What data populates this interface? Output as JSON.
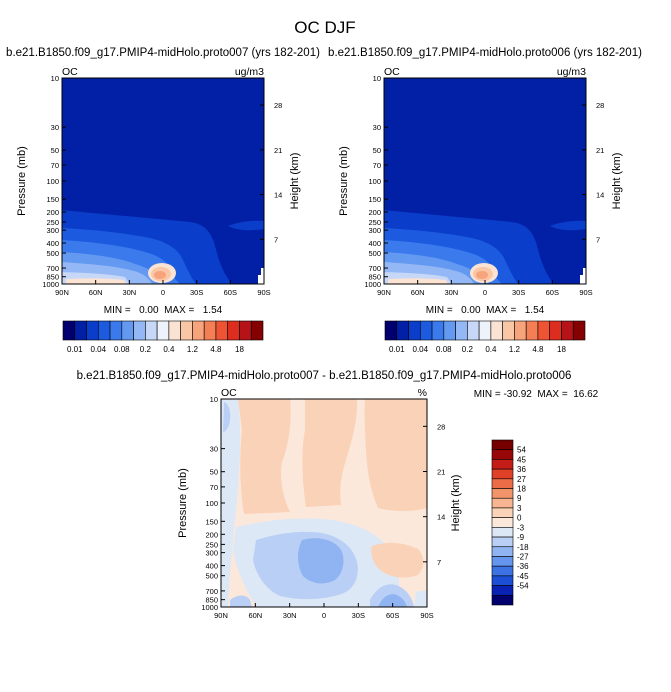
{
  "figure": {
    "title": "OC DJF"
  },
  "colors": {
    "abs_scale": [
      "#01006e",
      "#0220a6",
      "#0a3dc9",
      "#1c5be0",
      "#3a7aec",
      "#6399f0",
      "#93b8f5",
      "#c6d7f7",
      "#eef2fa",
      "#fbe3d3",
      "#f9c6a6",
      "#f7a37c",
      "#f47f55",
      "#ee5333",
      "#dc2d1f",
      "#b51317",
      "#850000"
    ],
    "diff_scale": [
      "#01006e",
      "#0922b4",
      "#1c4fd6",
      "#3d72e5",
      "#6595ec",
      "#90b4f2",
      "#b9cff5",
      "#dde8f7",
      "#fbe8da",
      "#fad2b7",
      "#f7b591",
      "#f3936a",
      "#ec6c47",
      "#de4128",
      "#c41c17",
      "#970707",
      "#760000"
    ]
  },
  "chart_data": [
    {
      "type": "heatmap",
      "title": "b.e21.B1850.f09_g17.PMIP4-midHolo.proto007 (yrs 182-201)",
      "left_label": "OC",
      "right_label": "ug/m3",
      "ylabel": "Pressure (mb)",
      "y2label": "Height (km)",
      "x_ticks": [
        "90N",
        "60N",
        "30N",
        "0",
        "30S",
        "60S",
        "90S"
      ],
      "xlim": [
        90,
        -90
      ],
      "y_ticks": [
        10,
        30,
        50,
        70,
        100,
        150,
        200,
        250,
        300,
        400,
        500,
        700,
        850,
        1000
      ],
      "ylim": [
        1000,
        10
      ],
      "y2_ticks": [
        28,
        21,
        14,
        7
      ],
      "min_max": "MIN =   0.00  MAX =   1.54",
      "colorbar_labels": [
        "0.01",
        "0.04",
        "0.08",
        "0.2",
        "0.4",
        "1.2",
        "4.8",
        "18"
      ]
    },
    {
      "type": "heatmap",
      "title": "b.e21.B1850.f09_g17.PMIP4-midHolo.proto006 (yrs 182-201)",
      "left_label": "OC",
      "right_label": "ug/m3",
      "ylabel": "Pressure (mb)",
      "y2label": "Height (km)",
      "x_ticks": [
        "90N",
        "60N",
        "30N",
        "0",
        "30S",
        "60S",
        "90S"
      ],
      "xlim": [
        90,
        -90
      ],
      "y_ticks": [
        10,
        30,
        50,
        70,
        100,
        150,
        200,
        250,
        300,
        400,
        500,
        700,
        850,
        1000
      ],
      "ylim": [
        1000,
        10
      ],
      "y2_ticks": [
        28,
        21,
        14,
        7
      ],
      "min_max": "MIN =   0.00  MAX =   1.54",
      "colorbar_labels": [
        "0.01",
        "0.04",
        "0.08",
        "0.2",
        "0.4",
        "1.2",
        "4.8",
        "18"
      ]
    },
    {
      "type": "heatmap",
      "title": "b.e21.B1850.f09_g17.PMIP4-midHolo.proto007 - b.e21.B1850.f09_g17.PMIP4-midHolo.proto006",
      "left_label": "OC",
      "right_label": "%",
      "ylabel": "Pressure (mb)",
      "y2label": "Height (km)",
      "x_ticks": [
        "90N",
        "60N",
        "30N",
        "0",
        "30S",
        "60S",
        "90S"
      ],
      "xlim": [
        90,
        -90
      ],
      "y_ticks": [
        10,
        30,
        50,
        70,
        100,
        150,
        200,
        250,
        300,
        400,
        500,
        700,
        850,
        1000
      ],
      "ylim": [
        1000,
        10
      ],
      "y2_ticks": [
        28,
        21,
        14,
        7
      ],
      "min_max": "MIN = -30.92  MAX =  16.62",
      "colorbar_labels": [
        "54",
        "45",
        "36",
        "27",
        "18",
        "9",
        "3",
        "0",
        "-3",
        "-9",
        "-18",
        "-27",
        "-36",
        "-45",
        "-54"
      ]
    }
  ]
}
